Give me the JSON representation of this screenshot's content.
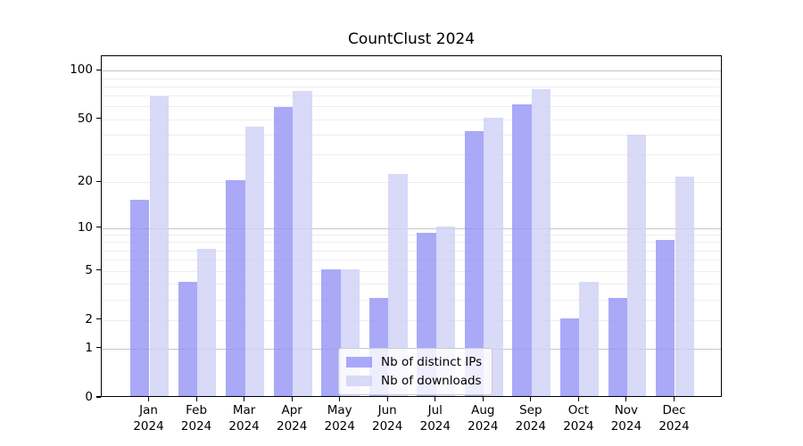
{
  "figure": {
    "title": "CountClust 2024"
  },
  "chart_data": {
    "type": "bar",
    "title": "CountClust 2024",
    "categories": [
      "Jan",
      "Feb",
      "Mar",
      "Apr",
      "May",
      "Jun",
      "Jul",
      "Aug",
      "Sep",
      "Oct",
      "Nov",
      "Dec"
    ],
    "x_axis": {
      "year_label": "2024"
    },
    "y_axis": {
      "scale": "log1p",
      "min": 0,
      "max": 123,
      "ticks": [
        0,
        1,
        2,
        5,
        10,
        20,
        50,
        100
      ],
      "major_gridlines": [
        1,
        10,
        100
      ],
      "minor_gridlines": [
        2,
        3,
        4,
        5,
        6,
        7,
        8,
        9,
        20,
        30,
        40,
        50,
        60,
        70,
        80,
        90
      ]
    },
    "series": [
      {
        "name": "Nb of distinct IPs",
        "color": "#9494f6",
        "values": [
          15,
          4,
          20,
          58,
          5,
          3,
          9,
          41,
          60,
          2,
          3,
          8
        ]
      },
      {
        "name": "Nb of downloads",
        "color": "#d0d0f6",
        "values": [
          68,
          7,
          44,
          73,
          5,
          22,
          10,
          50,
          75,
          4,
          39,
          21
        ]
      }
    ],
    "legend_position": "lower center",
    "grid": true
  }
}
